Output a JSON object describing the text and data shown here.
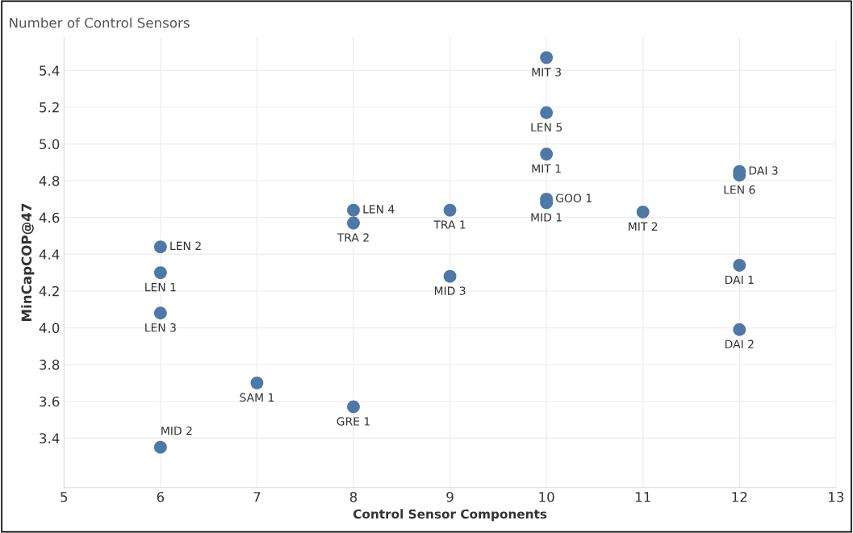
{
  "chart_data": {
    "type": "scatter",
    "title": "Number of Control Sensors",
    "xlabel": "Control Sensor Components",
    "ylabel": "MinCapCOP@47",
    "color": "#4e79a7",
    "marker": "circle",
    "grid": true,
    "x": [
      10,
      10,
      10,
      10,
      10,
      12,
      12,
      8,
      8,
      9,
      11,
      6,
      6,
      6,
      9,
      12,
      12,
      7,
      8,
      6
    ],
    "values": [
      5.47,
      5.17,
      4.945,
      4.7,
      4.68,
      4.85,
      4.83,
      4.64,
      4.57,
      4.64,
      4.63,
      4.44,
      4.3,
      4.08,
      4.28,
      4.34,
      3.99,
      3.7,
      3.57,
      3.35
    ],
    "value_labels": [
      "MIT 3",
      "LEN 5",
      "MIT 1",
      "GOO 1",
      "MID 1",
      "DAI 3",
      "LEN 6",
      "LEN 4",
      "TRA 2",
      "TRA 1",
      "MIT 2",
      "LEN 2",
      "LEN 1",
      "LEN 3",
      "MID 3",
      "DAI 1",
      "DAI 2",
      "SAM 1",
      "GRE 1",
      "MID 2"
    ],
    "xlim": [
      5,
      13
    ],
    "xticks": [
      5,
      6,
      7,
      8,
      9,
      10,
      11,
      12,
      13
    ],
    "ylim": [
      3.13,
      5.58
    ],
    "yticks": [
      {
        "value": 3.4,
        "label": "3.4"
      },
      {
        "value": 3.6,
        "label": "3.6"
      },
      {
        "value": 3.8,
        "label": "3.8"
      },
      {
        "value": 4.0,
        "label": "4.0"
      },
      {
        "value": 4.2,
        "label": "4.2"
      },
      {
        "value": 4.4,
        "label": "4.4"
      },
      {
        "value": 4.6,
        "label": "4.6"
      },
      {
        "value": 4.8,
        "label": "4.8"
      },
      {
        "value": 5.0,
        "label": "5.0"
      },
      {
        "value": 5.2,
        "label": "5.2"
      },
      {
        "value": 5.4,
        "label": "5.4"
      }
    ]
  }
}
